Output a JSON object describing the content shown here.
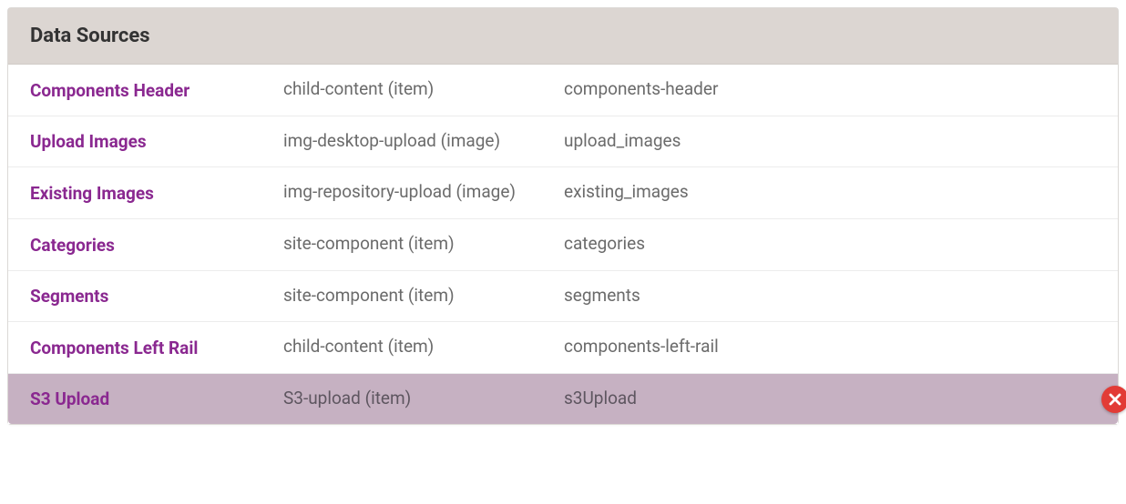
{
  "panel": {
    "title": "Data Sources"
  },
  "colors": {
    "header_bg": "#dcd6d2",
    "link": "#8a2890",
    "text": "#6b6b6b",
    "highlight_bg": "#c6b1c2",
    "delete_btn": "#e23b36",
    "border": "#ececec"
  },
  "rows": [
    {
      "label": "Components Header",
      "type": "child-content (item)",
      "key": "components-header",
      "highlighted": false
    },
    {
      "label": "Upload Images",
      "type": "img-desktop-upload (image)",
      "key": "upload_images",
      "highlighted": false
    },
    {
      "label": "Existing Images",
      "type": "img-repository-upload (image)",
      "key": "existing_images",
      "highlighted": false
    },
    {
      "label": "Categories",
      "type": "site-component (item)",
      "key": "categories",
      "highlighted": false
    },
    {
      "label": "Segments",
      "type": "site-component (item)",
      "key": "segments",
      "highlighted": false
    },
    {
      "label": "Components Left Rail",
      "type": "child-content (item)",
      "key": "components-left-rail",
      "highlighted": false
    },
    {
      "label": "S3 Upload",
      "type": "S3-upload (item)",
      "key": "s3Upload",
      "highlighted": true
    }
  ]
}
